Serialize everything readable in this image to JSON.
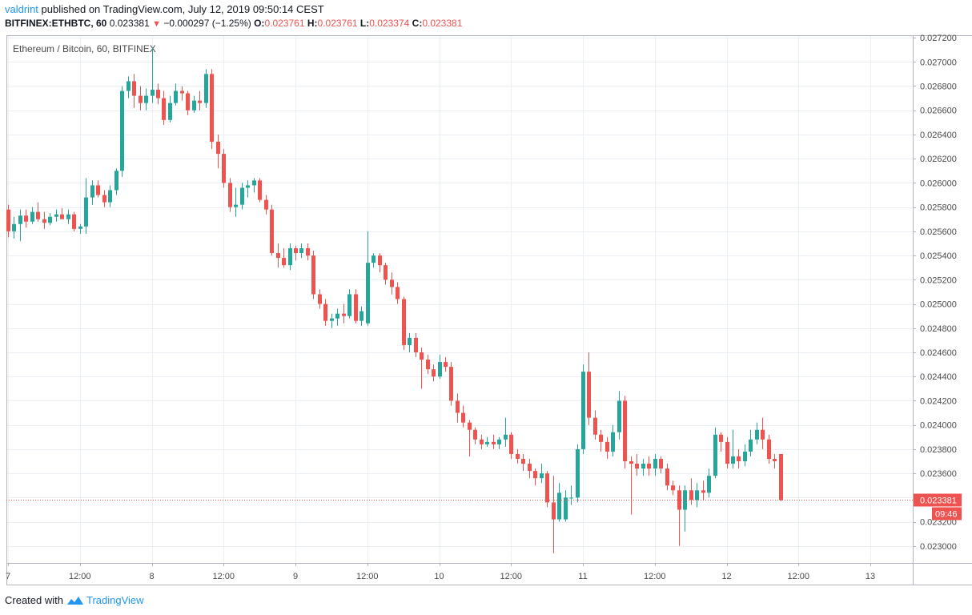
{
  "header": {
    "username": "valdrint",
    "published_text": "published on TradingView.com, July 12, 2019 09:50:14 CEST",
    "symbol": "BITFINEX:ETHBTC, 60",
    "last": "0.023381",
    "change_arrow": "▼",
    "change": "−0.000297 (−1.25%)",
    "o_label": "O:",
    "o_value": "0.023761",
    "h_label": "H:",
    "h_value": "0.023761",
    "l_label": "L:",
    "l_value": "0.023374",
    "c_label": "C:",
    "c_value": "0.023381"
  },
  "footer": {
    "created_with": "Created with",
    "brand": "TradingView"
  },
  "chart_data": {
    "type": "candlestick",
    "title": "Ethereum / Bitcoin, 60, BITFINEX",
    "ylim": [
      0.02286,
      0.02722
    ],
    "y_ticks": [
      "0.023000",
      "0.023200",
      "0.023400",
      "0.023600",
      "0.023800",
      "0.024000",
      "0.024200",
      "0.024400",
      "0.024600",
      "0.024800",
      "0.025000",
      "0.025200",
      "0.025400",
      "0.025600",
      "0.025800",
      "0.026000",
      "0.026200",
      "0.026400",
      "0.026600",
      "0.026800",
      "0.027000",
      "0.027200"
    ],
    "x_ticks": [
      {
        "label": "7",
        "hour": 0
      },
      {
        "label": "12:00",
        "hour": 12
      },
      {
        "label": "8",
        "hour": 24
      },
      {
        "label": "12:00",
        "hour": 36
      },
      {
        "label": "9",
        "hour": 48
      },
      {
        "label": "12:00",
        "hour": 60
      },
      {
        "label": "10",
        "hour": 72
      },
      {
        "label": "12:00",
        "hour": 84
      },
      {
        "label": "11",
        "hour": 96
      },
      {
        "label": "12:00",
        "hour": 108
      },
      {
        "label": "12",
        "hour": 120
      },
      {
        "label": "12:00",
        "hour": 132
      },
      {
        "label": "13",
        "hour": 144
      }
    ],
    "x_range_hours": [
      0,
      150
    ],
    "last_price": 0.023381,
    "last_price_label": "0.023381",
    "countdown_label": "09:46",
    "colors": {
      "up": "#26a69a",
      "down": "#ef5350",
      "grid": "#e9eff5"
    },
    "candles": [
      [
        0.02578,
        0.02582,
        0.02555,
        0.0256
      ],
      [
        0.0256,
        0.02572,
        0.02554,
        0.02566
      ],
      [
        0.02566,
        0.02578,
        0.02552,
        0.02573
      ],
      [
        0.02573,
        0.02578,
        0.02563,
        0.02568
      ],
      [
        0.02568,
        0.0258,
        0.02566,
        0.02576
      ],
      [
        0.02576,
        0.02584,
        0.02568,
        0.0257
      ],
      [
        0.0257,
        0.02576,
        0.02562,
        0.02567
      ],
      [
        0.02567,
        0.02575,
        0.02565,
        0.02572
      ],
      [
        0.02572,
        0.02578,
        0.02568,
        0.02574
      ],
      [
        0.02574,
        0.02579,
        0.0257,
        0.0257
      ],
      [
        0.0257,
        0.02578,
        0.02566,
        0.02574
      ],
      [
        0.02574,
        0.02576,
        0.0256,
        0.02562
      ],
      [
        0.02562,
        0.02566,
        0.02558,
        0.02564
      ],
      [
        0.02564,
        0.02604,
        0.02558,
        0.02588
      ],
      [
        0.02588,
        0.02602,
        0.02582,
        0.02598
      ],
      [
        0.02598,
        0.02602,
        0.02588,
        0.0259
      ],
      [
        0.0259,
        0.02594,
        0.0258,
        0.02584
      ],
      [
        0.02584,
        0.02598,
        0.0258,
        0.02594
      ],
      [
        0.02594,
        0.02612,
        0.0259,
        0.0261
      ],
      [
        0.0261,
        0.0268,
        0.02605,
        0.02676
      ],
      [
        0.02676,
        0.02688,
        0.0267,
        0.02684
      ],
      [
        0.02684,
        0.0269,
        0.02662,
        0.02672
      ],
      [
        0.02672,
        0.0268,
        0.0266,
        0.02666
      ],
      [
        0.02666,
        0.02678,
        0.0266,
        0.02672
      ],
      [
        0.02672,
        0.02712,
        0.02666,
        0.02677
      ],
      [
        0.02677,
        0.02682,
        0.02665,
        0.0267
      ],
      [
        0.0267,
        0.02676,
        0.02648,
        0.02652
      ],
      [
        0.02652,
        0.02672,
        0.0265,
        0.02666
      ],
      [
        0.02666,
        0.02682,
        0.02664,
        0.02676
      ],
      [
        0.02676,
        0.0268,
        0.02668,
        0.02674
      ],
      [
        0.02674,
        0.02676,
        0.02656,
        0.0266
      ],
      [
        0.0266,
        0.02672,
        0.02658,
        0.02668
      ],
      [
        0.02668,
        0.02676,
        0.0266,
        0.02666
      ],
      [
        0.02666,
        0.02694,
        0.02662,
        0.0269
      ],
      [
        0.0269,
        0.02694,
        0.02628,
        0.02634
      ],
      [
        0.02634,
        0.0264,
        0.02612,
        0.02624
      ],
      [
        0.02624,
        0.02628,
        0.02596,
        0.026
      ],
      [
        0.026,
        0.02604,
        0.02576,
        0.0258
      ],
      [
        0.0258,
        0.02596,
        0.02572,
        0.02582
      ],
      [
        0.02582,
        0.026,
        0.02578,
        0.02596
      ],
      [
        0.02596,
        0.02602,
        0.02588,
        0.02598
      ],
      [
        0.02598,
        0.02604,
        0.02592,
        0.02602
      ],
      [
        0.02602,
        0.02604,
        0.02584,
        0.02586
      ],
      [
        0.02586,
        0.0259,
        0.02574,
        0.02578
      ],
      [
        0.02578,
        0.02582,
        0.0254,
        0.02542
      ],
      [
        0.02542,
        0.0255,
        0.0253,
        0.02538
      ],
      [
        0.02538,
        0.02546,
        0.0253,
        0.02532
      ],
      [
        0.02532,
        0.0255,
        0.02528,
        0.02546
      ],
      [
        0.02546,
        0.02548,
        0.02536,
        0.02542
      ],
      [
        0.02542,
        0.0255,
        0.02538,
        0.02546
      ],
      [
        0.02546,
        0.0255,
        0.02536,
        0.0254
      ],
      [
        0.0254,
        0.02544,
        0.02504,
        0.02508
      ],
      [
        0.02508,
        0.02512,
        0.02496,
        0.025
      ],
      [
        0.025,
        0.02504,
        0.02482,
        0.02486
      ],
      [
        0.02486,
        0.02492,
        0.0248,
        0.02488
      ],
      [
        0.02488,
        0.02496,
        0.02482,
        0.02492
      ],
      [
        0.02492,
        0.025,
        0.02484,
        0.0249
      ],
      [
        0.0249,
        0.02512,
        0.02488,
        0.02508
      ],
      [
        0.02508,
        0.02512,
        0.02484,
        0.02486
      ],
      [
        0.02486,
        0.02498,
        0.02482,
        0.02494
      ],
      [
        0.02484,
        0.0256,
        0.02482,
        0.02534
      ],
      [
        0.02534,
        0.02542,
        0.0253,
        0.0254
      ],
      [
        0.0254,
        0.02542,
        0.02526,
        0.02532
      ],
      [
        0.02532,
        0.02534,
        0.02516,
        0.0252
      ],
      [
        0.0252,
        0.02526,
        0.02508,
        0.02514
      ],
      [
        0.02514,
        0.02518,
        0.025,
        0.02504
      ],
      [
        0.02504,
        0.02506,
        0.02462,
        0.02466
      ],
      [
        0.02466,
        0.02476,
        0.0246,
        0.02472
      ],
      [
        0.02472,
        0.02476,
        0.02456,
        0.0246
      ],
      [
        0.0246,
        0.02464,
        0.0243,
        0.02454
      ],
      [
        0.02454,
        0.02458,
        0.02442,
        0.02446
      ],
      [
        0.02446,
        0.0245,
        0.02436,
        0.0244
      ],
      [
        0.0244,
        0.02458,
        0.02438,
        0.02452
      ],
      [
        0.02452,
        0.02456,
        0.02444,
        0.02448
      ],
      [
        0.02448,
        0.02452,
        0.02416,
        0.0242
      ],
      [
        0.0242,
        0.02426,
        0.02402,
        0.0241
      ],
      [
        0.0241,
        0.02416,
        0.02398,
        0.02402
      ],
      [
        0.02402,
        0.02404,
        0.02374,
        0.02396
      ],
      [
        0.02396,
        0.02398,
        0.02384,
        0.02388
      ],
      [
        0.02388,
        0.02392,
        0.0238,
        0.02384
      ],
      [
        0.02384,
        0.0239,
        0.02382,
        0.02386
      ],
      [
        0.02386,
        0.02392,
        0.0238,
        0.02384
      ],
      [
        0.02384,
        0.0239,
        0.0238,
        0.02388
      ],
      [
        0.02388,
        0.02406,
        0.02382,
        0.02392
      ],
      [
        0.02392,
        0.02394,
        0.02372,
        0.02376
      ],
      [
        0.02376,
        0.0238,
        0.02368,
        0.02372
      ],
      [
        0.02372,
        0.02376,
        0.02362,
        0.02368
      ],
      [
        0.02368,
        0.02372,
        0.02356,
        0.02362
      ],
      [
        0.02362,
        0.02364,
        0.0235,
        0.02356
      ],
      [
        0.02356,
        0.02368,
        0.02352,
        0.0236
      ],
      [
        0.0236,
        0.02362,
        0.02332,
        0.02336
      ],
      [
        0.02336,
        0.02358,
        0.02294,
        0.02322
      ],
      [
        0.02322,
        0.02352,
        0.0232,
        0.02344
      ],
      [
        0.02322,
        0.02346,
        0.0232,
        0.0234
      ],
      [
        0.0234,
        0.0235,
        0.02334,
        0.0234
      ],
      [
        0.0234,
        0.02384,
        0.02336,
        0.0238
      ],
      [
        0.0238,
        0.0245,
        0.02376,
        0.02444
      ],
      [
        0.02444,
        0.0246,
        0.024,
        0.02406
      ],
      [
        0.02406,
        0.02412,
        0.02388,
        0.02392
      ],
      [
        0.02392,
        0.02396,
        0.02378,
        0.02386
      ],
      [
        0.02386,
        0.0239,
        0.02372,
        0.02378
      ],
      [
        0.02378,
        0.024,
        0.02374,
        0.02394
      ],
      [
        0.02394,
        0.02428,
        0.02388,
        0.0242
      ],
      [
        0.0242,
        0.02424,
        0.02364,
        0.0237
      ],
      [
        0.0237,
        0.02374,
        0.02326,
        0.02368
      ],
      [
        0.02368,
        0.02376,
        0.02358,
        0.02364
      ],
      [
        0.02364,
        0.02372,
        0.02358,
        0.02368
      ],
      [
        0.02368,
        0.02374,
        0.02358,
        0.02364
      ],
      [
        0.02364,
        0.02376,
        0.02358,
        0.02372
      ],
      [
        0.02372,
        0.02374,
        0.0236,
        0.02364
      ],
      [
        0.02364,
        0.02368,
        0.02346,
        0.0235
      ],
      [
        0.0235,
        0.02354,
        0.02342,
        0.02346
      ],
      [
        0.02346,
        0.0235,
        0.023,
        0.0233
      ],
      [
        0.0233,
        0.0235,
        0.02312,
        0.02346
      ],
      [
        0.02346,
        0.02356,
        0.02334,
        0.02338
      ],
      [
        0.02338,
        0.02352,
        0.02332,
        0.02346
      ],
      [
        0.02346,
        0.02354,
        0.02338,
        0.02344
      ],
      [
        0.02344,
        0.02364,
        0.0234,
        0.02358
      ],
      [
        0.02358,
        0.02398,
        0.02356,
        0.02392
      ],
      [
        0.02392,
        0.02394,
        0.02378,
        0.02386
      ],
      [
        0.02386,
        0.0239,
        0.02364,
        0.02368
      ],
      [
        0.02368,
        0.02396,
        0.02364,
        0.02374
      ],
      [
        0.02374,
        0.0238,
        0.02364,
        0.0237
      ],
      [
        0.0237,
        0.02384,
        0.02366,
        0.02378
      ],
      [
        0.02378,
        0.02396,
        0.02374,
        0.02388
      ],
      [
        0.02388,
        0.02402,
        0.02384,
        0.02396
      ],
      [
        0.02396,
        0.02406,
        0.0238,
        0.02388
      ],
      [
        0.02388,
        0.02392,
        0.02368,
        0.02372
      ],
      [
        0.02372,
        0.02376,
        0.02364,
        0.0237
      ],
      [
        0.02376,
        0.02376,
        0.02337,
        0.02338
      ]
    ]
  }
}
